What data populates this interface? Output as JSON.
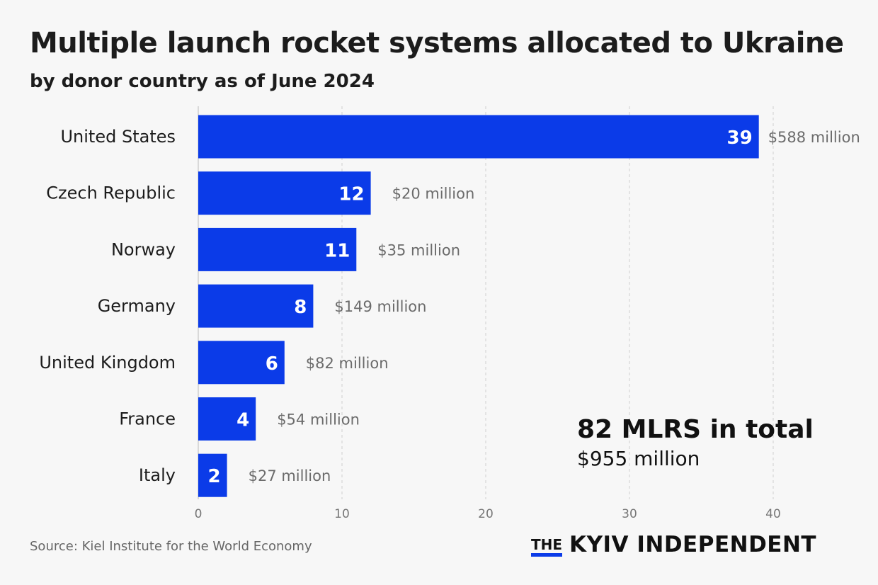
{
  "colors": {
    "bar": "#0b3be8",
    "bar_label": "#ffffff",
    "value_label": "#6b6b6b",
    "grid": "#cfcfcf",
    "accent": "#0b3be8"
  },
  "chart_data": {
    "type": "bar",
    "orientation": "horizontal",
    "title": "Multiple launch rocket systems allocated to Ukraine",
    "subtitle": "by donor country as of June 2024",
    "categories": [
      "United States",
      "Czech Republic",
      "Norway",
      "Germany",
      "United Kingdom",
      "France",
      "Italy"
    ],
    "values": [
      39,
      12,
      11,
      8,
      6,
      4,
      2
    ],
    "value_labels": [
      "$588 million",
      "$20 million",
      "$35 million",
      "$149 million",
      "$82 million",
      "$54 million",
      "$27 million"
    ],
    "xlim": [
      0,
      40
    ],
    "xticks": [
      0,
      10,
      20,
      30,
      40
    ],
    "grid": true,
    "xlabel": "",
    "ylabel": ""
  },
  "total": {
    "count": "82 MLRS in total",
    "value": "$955 million"
  },
  "source": "Source: Kiel Institute for the World Economy",
  "brand": {
    "the": "THE",
    "name": "KYIV INDEPENDENT"
  }
}
